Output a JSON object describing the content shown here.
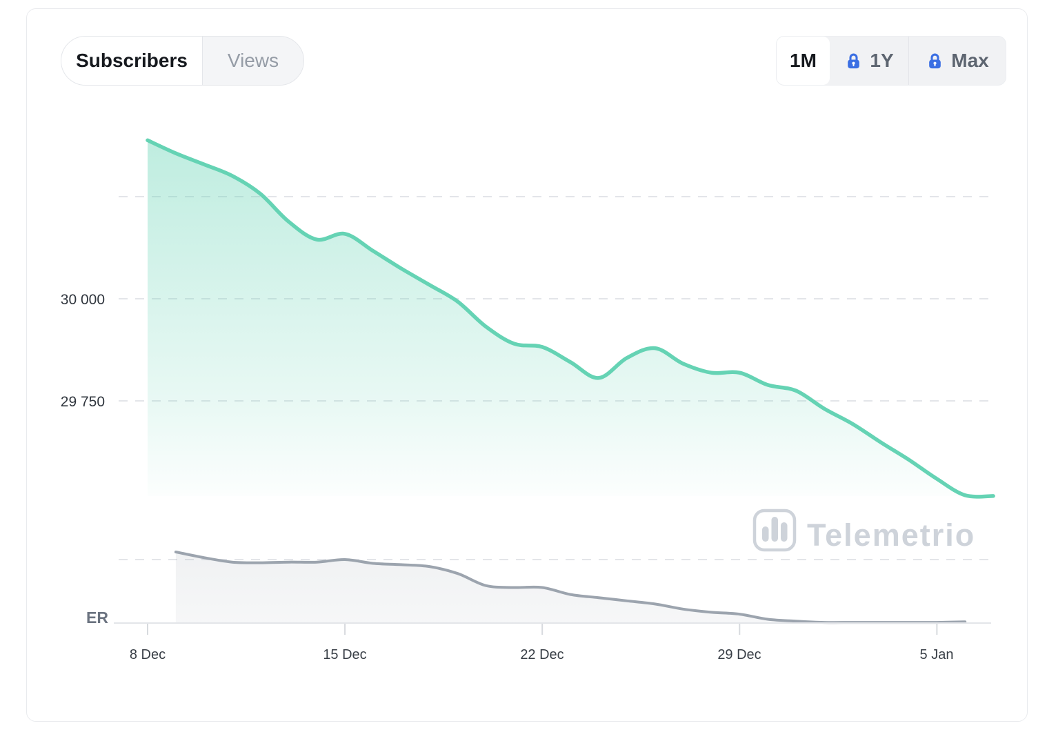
{
  "header": {
    "tabs": [
      {
        "label": "Subscribers",
        "active": true
      },
      {
        "label": "Views",
        "active": false
      }
    ],
    "range_buttons": [
      {
        "label": "1M",
        "active": true,
        "locked": false
      },
      {
        "label": "1Y",
        "active": false,
        "locked": true
      },
      {
        "label": "Max",
        "active": false,
        "locked": true
      }
    ]
  },
  "watermark": {
    "text": "Telemetrio",
    "logo": "bar-chart-logo",
    "color": "#ced3da"
  },
  "colors": {
    "subscribers_line": "#65d3b4",
    "subscribers_fill_top": "rgba(101,211,180,0.42)",
    "subscribers_fill_bottom": "rgba(101,211,180,0.02)",
    "er_line": "#9ca4ae",
    "er_fill": "rgba(156,164,174,0.12)",
    "gridline": "#e3e5e9",
    "axis": "#e3e5e9",
    "tick": "#d7dade",
    "lock_icon": "#3b6fe3"
  },
  "chart_data": [
    {
      "type": "area",
      "name": "subscribers",
      "title": "Subscribers over last month",
      "x_unit": "day",
      "dates": [
        "8 Dec",
        "9 Dec",
        "10 Dec",
        "11 Dec",
        "12 Dec",
        "13 Dec",
        "14 Dec",
        "15 Dec",
        "16 Dec",
        "17 Dec",
        "18 Dec",
        "19 Dec",
        "20 Dec",
        "21 Dec",
        "22 Dec",
        "23 Dec",
        "24 Dec",
        "25 Dec",
        "26 Dec",
        "27 Dec",
        "28 Dec",
        "29 Dec",
        "30 Dec",
        "31 Dec",
        "1 Jan",
        "2 Jan",
        "3 Jan",
        "4 Jan",
        "5 Jan",
        "6 Jan",
        "7 Jan"
      ],
      "values": [
        30388,
        30356,
        30329,
        30301,
        30257,
        30189,
        30145,
        30159,
        30117,
        30074,
        30034,
        29993,
        29932,
        29890,
        29882,
        29845,
        29806,
        29855,
        29879,
        29841,
        29819,
        29819,
        29789,
        29775,
        29731,
        29694,
        29649,
        29606,
        29559,
        29519,
        29517
      ],
      "y_tick_labels": [
        "30 000",
        "29 750"
      ],
      "y_tick_values": [
        30000,
        29750
      ],
      "y_gridline_values": [
        30250,
        30000,
        29750
      ],
      "x_tick_labels": [
        "8 Dec",
        "15 Dec",
        "22 Dec",
        "29 Dec",
        "5 Jan"
      ],
      "x_tick_days": [
        0,
        7,
        14,
        21,
        28
      ],
      "grid": "dashed-horizontal",
      "legend": "none"
    },
    {
      "type": "area",
      "name": "engagement-rate",
      "label": "ER",
      "x_unit": "day",
      "unit": "relative (no numeric axis shown; 1.0 = dashed reference gridline)",
      "start_day": 1,
      "values": [
        1.12,
        1.03,
        0.96,
        0.95,
        0.96,
        0.96,
        1.0,
        0.94,
        0.92,
        0.89,
        0.78,
        0.59,
        0.56,
        0.56,
        0.45,
        0.4,
        0.35,
        0.3,
        0.22,
        0.17,
        0.14,
        0.06,
        0.03,
        0.01,
        0.01,
        0.01,
        0.01,
        0.01,
        0.02
      ],
      "grid": "dashed-horizontal",
      "legend": "none"
    }
  ]
}
